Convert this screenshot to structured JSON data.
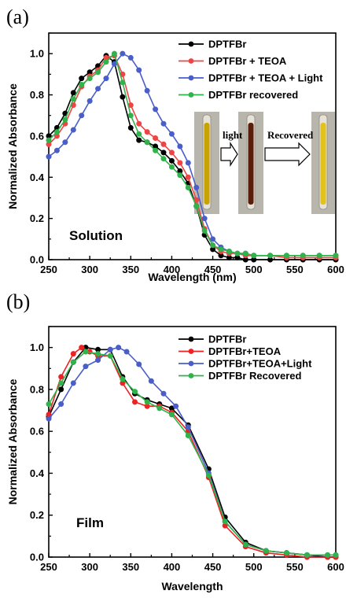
{
  "chart_data": [
    {
      "panel": "(a)",
      "type": "line",
      "xlabel": "Wavelength (nm)",
      "ylabel": "Normalized Absorbance",
      "xlim": [
        250,
        600
      ],
      "ylim": [
        0.0,
        1.1
      ],
      "xticks": [
        250,
        300,
        350,
        400,
        450,
        500,
        550,
        600
      ],
      "yticks": [
        0.0,
        0.2,
        0.4,
        0.6,
        0.8,
        1.0
      ],
      "annotation": "Solution",
      "legend_position": "top-right",
      "inset": {
        "label_light": "light",
        "label_recovered": "Recovered",
        "vial_colors": [
          "#c9a300",
          "#5a1f0a",
          "#e3c21a"
        ]
      },
      "series": [
        {
          "name": "DPTFBr",
          "color": "#000000",
          "x": [
            250,
            260,
            270,
            280,
            290,
            300,
            310,
            320,
            330,
            340,
            350,
            360,
            370,
            380,
            390,
            400,
            410,
            420,
            430,
            440,
            450,
            460,
            470,
            480,
            490,
            500,
            520,
            540,
            560,
            580,
            600
          ],
          "y": [
            0.6,
            0.64,
            0.71,
            0.81,
            0.88,
            0.91,
            0.94,
            0.99,
            0.96,
            0.79,
            0.64,
            0.58,
            0.57,
            0.55,
            0.52,
            0.48,
            0.43,
            0.37,
            0.26,
            0.12,
            0.05,
            0.02,
            0.01,
            0.01,
            0.0,
            0.0,
            0.0,
            0.0,
            0.0,
            0.0,
            0.0
          ]
        },
        {
          "name": "DPTFBr + TEOA",
          "color": "#ee4444",
          "x": [
            250,
            260,
            270,
            280,
            290,
            300,
            310,
            320,
            330,
            340,
            350,
            360,
            370,
            380,
            390,
            400,
            410,
            420,
            430,
            440,
            450,
            460,
            470,
            480,
            490,
            500,
            520,
            540,
            560,
            580,
            600
          ],
          "y": [
            0.56,
            0.6,
            0.66,
            0.75,
            0.84,
            0.89,
            0.92,
            0.98,
            0.99,
            0.9,
            0.75,
            0.66,
            0.62,
            0.59,
            0.56,
            0.52,
            0.47,
            0.4,
            0.29,
            0.15,
            0.07,
            0.04,
            0.03,
            0.03,
            0.02,
            0.02,
            0.02,
            0.01,
            0.01,
            0.01,
            0.01
          ]
        },
        {
          "name": "DPTFBr + TEOA + Light",
          "color": "#4a5ec9",
          "x": [
            250,
            260,
            270,
            280,
            290,
            300,
            310,
            320,
            330,
            340,
            350,
            360,
            370,
            380,
            390,
            400,
            410,
            420,
            430,
            440,
            450,
            460,
            470,
            480,
            490,
            500,
            520,
            540,
            560,
            580,
            600
          ],
          "y": [
            0.5,
            0.53,
            0.57,
            0.63,
            0.7,
            0.77,
            0.83,
            0.88,
            0.95,
            1.0,
            0.98,
            0.92,
            0.82,
            0.73,
            0.66,
            0.61,
            0.55,
            0.47,
            0.35,
            0.2,
            0.1,
            0.06,
            0.04,
            0.03,
            0.03,
            0.02,
            0.02,
            0.02,
            0.02,
            0.02,
            0.02
          ]
        },
        {
          "name": "DPTFBr recovered",
          "color": "#2fb34a",
          "x": [
            250,
            260,
            270,
            280,
            290,
            300,
            310,
            320,
            330,
            340,
            350,
            360,
            370,
            380,
            390,
            400,
            410,
            420,
            430,
            440,
            450,
            460,
            470,
            480,
            490,
            500,
            520,
            540,
            560,
            580,
            600
          ],
          "y": [
            0.58,
            0.62,
            0.68,
            0.78,
            0.85,
            0.88,
            0.91,
            0.96,
            1.0,
            0.86,
            0.7,
            0.61,
            0.57,
            0.53,
            0.49,
            0.45,
            0.41,
            0.35,
            0.26,
            0.14,
            0.07,
            0.05,
            0.04,
            0.03,
            0.03,
            0.02,
            0.02,
            0.02,
            0.02,
            0.02,
            0.02
          ]
        }
      ]
    },
    {
      "panel": "(b)",
      "type": "line",
      "xlabel": "Wavelength",
      "ylabel": "Normalized Absorbance",
      "xlim": [
        250,
        600
      ],
      "ylim": [
        0.0,
        1.1
      ],
      "xticks": [
        250,
        300,
        350,
        400,
        450,
        500,
        550,
        600
      ],
      "yticks": [
        0.0,
        0.2,
        0.4,
        0.6,
        0.8,
        1.0
      ],
      "annotation": "Film",
      "legend_position": "top-right",
      "series": [
        {
          "name": "DPTFBr",
          "color": "#000000",
          "x": [
            250,
            265,
            280,
            295,
            310,
            325,
            340,
            355,
            370,
            385,
            400,
            420,
            445,
            465,
            490,
            515,
            540,
            565,
            590,
            600
          ],
          "y": [
            0.67,
            0.8,
            0.93,
            1.0,
            0.99,
            0.99,
            0.86,
            0.78,
            0.75,
            0.73,
            0.71,
            0.63,
            0.42,
            0.19,
            0.07,
            0.03,
            0.02,
            0.01,
            0.0,
            0.0
          ]
        },
        {
          "name": "DPTFBr+TEOA",
          "color": "#ee2222",
          "x": [
            250,
            265,
            280,
            290,
            300,
            310,
            325,
            340,
            355,
            370,
            385,
            400,
            420,
            445,
            465,
            490,
            515,
            540,
            565,
            590,
            600
          ],
          "y": [
            0.68,
            0.86,
            0.97,
            1.0,
            0.98,
            0.96,
            0.96,
            0.83,
            0.74,
            0.72,
            0.72,
            0.69,
            0.6,
            0.38,
            0.15,
            0.05,
            0.02,
            0.01,
            0.0,
            0.0,
            0.0
          ]
        },
        {
          "name": "DPTFBr+TEOA+Light",
          "color": "#4a5ec9",
          "x": [
            250,
            265,
            280,
            295,
            310,
            325,
            335,
            345,
            360,
            375,
            390,
            405,
            420,
            445,
            465,
            490,
            515,
            540,
            565,
            590,
            600
          ],
          "y": [
            0.66,
            0.73,
            0.83,
            0.91,
            0.94,
            0.99,
            1.0,
            0.98,
            0.92,
            0.84,
            0.78,
            0.72,
            0.62,
            0.4,
            0.17,
            0.06,
            0.03,
            0.02,
            0.01,
            0.01,
            0.01
          ]
        },
        {
          "name": "DPTFBr Recovered",
          "color": "#2fb34a",
          "x": [
            250,
            265,
            280,
            295,
            310,
            325,
            340,
            355,
            370,
            385,
            400,
            420,
            445,
            465,
            490,
            515,
            540,
            565,
            590,
            600
          ],
          "y": [
            0.73,
            0.83,
            0.93,
            0.98,
            0.97,
            0.96,
            0.85,
            0.79,
            0.74,
            0.71,
            0.68,
            0.58,
            0.39,
            0.17,
            0.06,
            0.03,
            0.02,
            0.01,
            0.01,
            0.01
          ]
        }
      ]
    }
  ]
}
